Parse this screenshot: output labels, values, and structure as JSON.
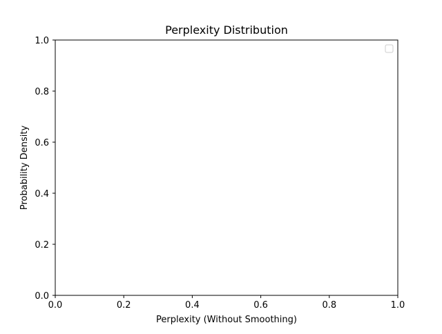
{
  "chart_data": {
    "type": "line",
    "title": "Perplexity Distribution",
    "xlabel": "Perplexity (Without Smoothing)",
    "ylabel": "Probability Density",
    "xlim": [
      0.0,
      1.0
    ],
    "ylim": [
      0.0,
      1.0
    ],
    "xticks": [
      "0.0",
      "0.2",
      "0.4",
      "0.6",
      "0.8",
      "1.0"
    ],
    "yticks": [
      "0.0",
      "0.2",
      "0.4",
      "0.6",
      "0.8",
      "1.0"
    ],
    "series": [],
    "legend": {
      "location": "upper right",
      "entries": []
    },
    "grid": false
  }
}
